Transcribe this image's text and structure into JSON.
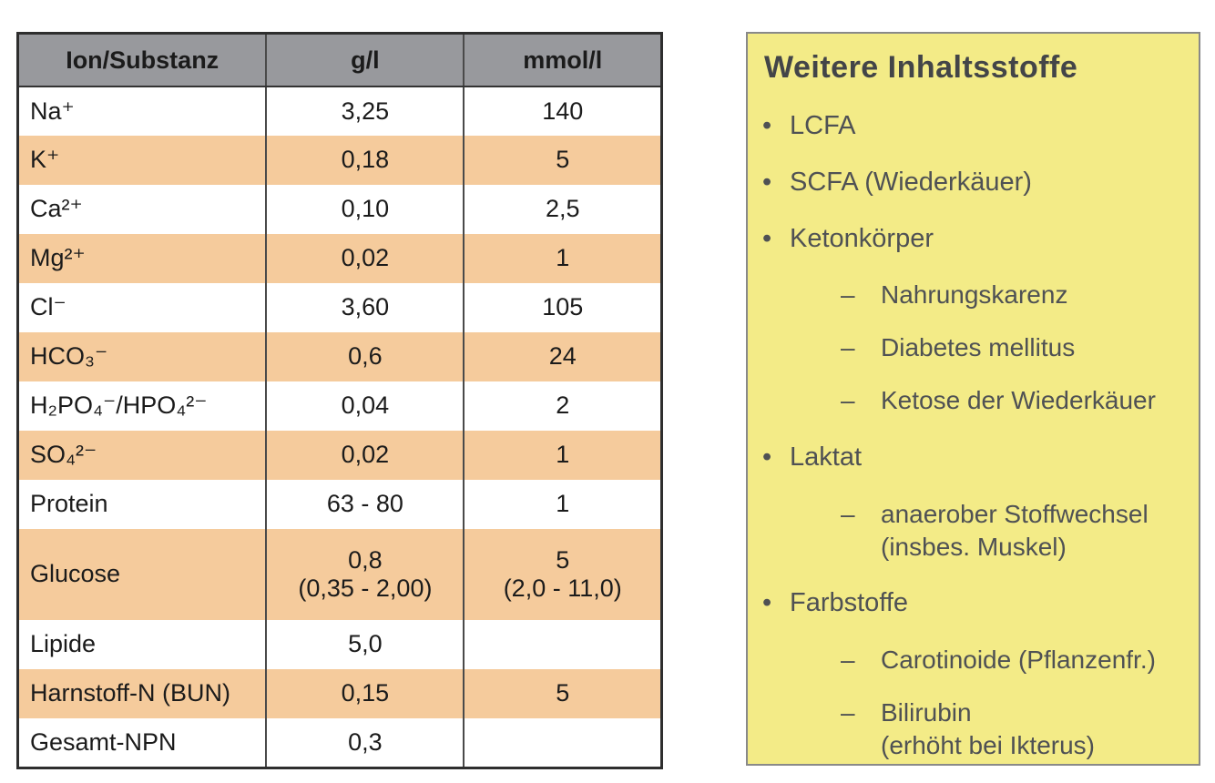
{
  "colors": {
    "page_bg": "#ffffff",
    "table_header_bg": "#98999d",
    "table_stripe_bg": "#f5cb9c",
    "table_border": "#2e2e2e",
    "panel_bg": "#f3eb87",
    "panel_border": "#898989",
    "panel_text": "#4f5154"
  },
  "table": {
    "columns": [
      "Ion/Substanz",
      "g/l",
      "mmol/l"
    ],
    "rows": [
      [
        "Na⁺",
        "3,25",
        "140"
      ],
      [
        "K⁺",
        "0,18",
        "5"
      ],
      [
        "Ca²⁺",
        "0,10",
        "2,5"
      ],
      [
        "Mg²⁺",
        "0,02",
        "1"
      ],
      [
        "Cl⁻",
        "3,60",
        "105"
      ],
      [
        "HCO₃⁻",
        "0,6",
        "24"
      ],
      [
        "H₂PO₄⁻/HPO₄²⁻",
        "0,04",
        "2"
      ],
      [
        "SO₄²⁻",
        "0,02",
        "1"
      ],
      [
        "Protein",
        "63 - 80",
        "1"
      ],
      [
        "Glucose",
        "0,8\n(0,35 - 2,00)",
        "5\n(2,0 - 11,0)"
      ],
      [
        "Lipide",
        "5,0",
        ""
      ],
      [
        "Harnstoff-N (BUN)",
        "0,15",
        "5"
      ],
      [
        "Gesamt-NPN",
        "0,3",
        ""
      ]
    ]
  },
  "panel": {
    "title": "Weitere Inhaltsstoffe",
    "bullet_char": "•",
    "dash_char": "–",
    "items": [
      {
        "label": "LCFA",
        "children": []
      },
      {
        "label": "SCFA (Wiederkäuer)",
        "children": []
      },
      {
        "label": "Ketonkörper",
        "children": [
          "Nahrungskarenz",
          "Diabetes mellitus",
          "Ketose der Wiederkäuer"
        ]
      },
      {
        "label": "Laktat",
        "children": [
          "anaerober Stoffwechsel\n(insbes. Muskel)"
        ]
      },
      {
        "label": "Farbstoffe",
        "children": [
          "Carotinoide (Pflanzenfr.)",
          "Bilirubin\n(erhöht bei Ikterus)"
        ]
      }
    ]
  }
}
